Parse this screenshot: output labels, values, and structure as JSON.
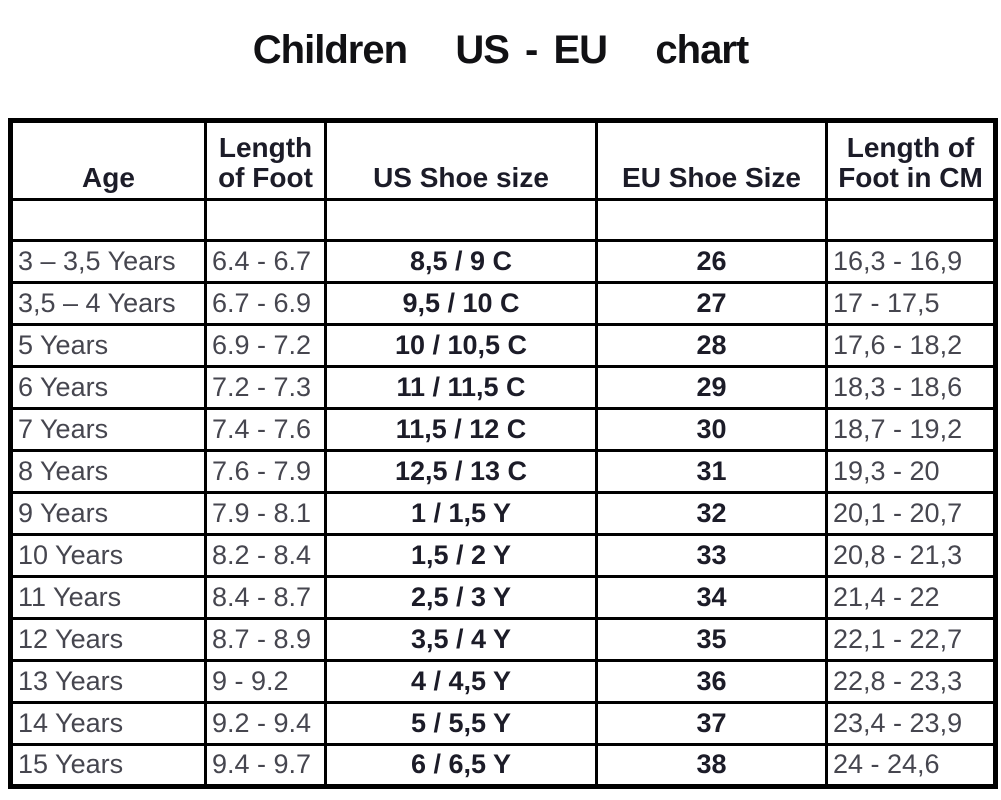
{
  "title": "Children   US - EU   chart",
  "colors": {
    "background": "#ffffff",
    "border": "#000000",
    "text": "#46464f",
    "bold_text": "#1c1c28"
  },
  "table": {
    "headers": [
      "Age",
      "Length of Foot",
      "US Shoe size",
      "EU Shoe Size",
      "Length of Foot in CM"
    ],
    "columns": [
      {
        "key": "age",
        "class": "cell-left"
      },
      {
        "key": "foot",
        "class": "cell-left"
      },
      {
        "key": "us",
        "class": "cell-center-bold"
      },
      {
        "key": "eu",
        "class": "cell-center-bold"
      },
      {
        "key": "cm",
        "class": "cell-left"
      }
    ],
    "rows": [
      {
        "age": "3 – 3,5 Years",
        "foot": "6.4 - 6.7",
        "us": "8,5 / 9 C",
        "eu": "26",
        "cm": "16,3 - 16,9"
      },
      {
        "age": "3,5 – 4 Years",
        "foot": "6.7 - 6.9",
        "us": "9,5 / 10 C",
        "eu": "27",
        "cm": "17 - 17,5"
      },
      {
        "age": "5 Years",
        "foot": "6.9 - 7.2",
        "us": "10 / 10,5 C",
        "eu": "28",
        "cm": "17,6 - 18,2"
      },
      {
        "age": "6 Years",
        "foot": "7.2 - 7.3",
        "us": "11 / 11,5 C",
        "eu": "29",
        "cm": "18,3 - 18,6"
      },
      {
        "age": "7 Years",
        "foot": "7.4 - 7.6",
        "us": "11,5 / 12 C",
        "eu": "30",
        "cm": "18,7 - 19,2"
      },
      {
        "age": "8 Years",
        "foot": "7.6 - 7.9",
        "us": "12,5 / 13 C",
        "eu": "31",
        "cm": "19,3 - 20"
      },
      {
        "age": "9 Years",
        "foot": "7.9 - 8.1",
        "us": "1 / 1,5 Y",
        "eu": "32",
        "cm": "20,1 - 20,7"
      },
      {
        "age": "10 Years",
        "foot": "8.2 - 8.4",
        "us": "1,5 / 2 Y",
        "eu": "33",
        "cm": "20,8 - 21,3"
      },
      {
        "age": "11 Years",
        "foot": "8.4 - 8.7",
        "us": "2,5 / 3 Y",
        "eu": "34",
        "cm": "21,4 - 22"
      },
      {
        "age": "12 Years",
        "foot": "8.7 - 8.9",
        "us": "3,5 / 4 Y",
        "eu": "35",
        "cm": "22,1 - 22,7"
      },
      {
        "age": "13 Years",
        "foot": "9 - 9.2",
        "us": "4 / 4,5 Y",
        "eu": "36",
        "cm": "22,8 - 23,3"
      },
      {
        "age": "14 Years",
        "foot": "9.2 - 9.4",
        "us": "5 / 5,5 Y",
        "eu": "37",
        "cm": "23,4 - 23,9"
      },
      {
        "age": "15 Years",
        "foot": "9.4 - 9.7",
        "us": "6 / 6,5 Y",
        "eu": "38",
        "cm": "24 - 24,6"
      }
    ]
  }
}
